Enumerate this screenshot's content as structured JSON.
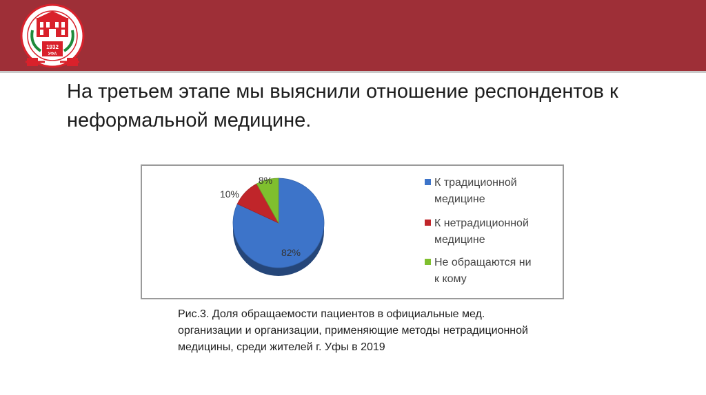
{
  "header": {
    "logo": {
      "icon": "university-building-seal-icon",
      "year": "1932",
      "city": "УФА",
      "colors": {
        "red": "#d9212b",
        "green": "#1f8a3a",
        "band": "#9e2f37"
      }
    }
  },
  "slide": {
    "title_lines": [
      "На третьем этапе мы выяснили отношение респондентов к",
      "неформальной медицине."
    ]
  },
  "chart_data": {
    "type": "pie",
    "title": "",
    "categories": [
      "К традиционной медицине",
      "К нетрадиционной медицине",
      "Не обращаются ни к кому"
    ],
    "values": [
      82,
      10,
      8
    ],
    "labels": [
      "82%",
      "10%",
      "8%"
    ],
    "colors": [
      "#3d74c9",
      "#c0252a",
      "#7fbf2e"
    ],
    "legend": {
      "placement": "right",
      "entries": [
        {
          "lines": [
            "К традиционной",
            "медицине"
          ]
        },
        {
          "lines": [
            "К нетрадиционной",
            "медицине"
          ]
        },
        {
          "lines": [
            "Не обращаются ни",
            "к кому"
          ]
        }
      ]
    },
    "style": "3d"
  },
  "caption": {
    "lines": [
      "Рис.3. Доля обращаемости пациентов в официальные мед.",
      "организации и организации, применяющие методы нетрадиционной",
      "медицины, среди жителей г. Уфы в 2019"
    ]
  }
}
